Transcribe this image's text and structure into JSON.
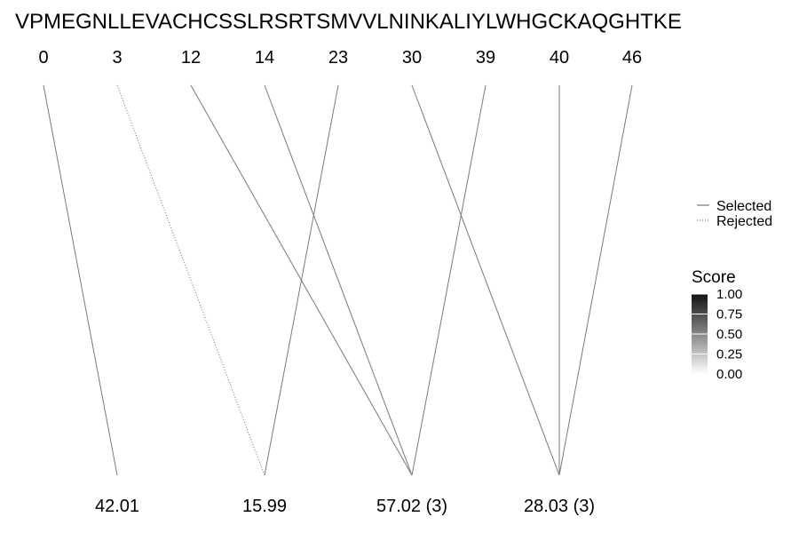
{
  "chart_data": {
    "type": "line",
    "sequence": "VPMEGNLLEVACHCSSLRSRTSMVVLNINKALIYLWHGCKAQGHTKE",
    "top_positions": [
      "0",
      "3",
      "12",
      "14",
      "23",
      "30",
      "39",
      "40",
      "46"
    ],
    "bottom_labels": [
      "42.01",
      "15.99",
      "57.02 (3)",
      "28.03 (3)"
    ],
    "connections": [
      {
        "top": 0,
        "bottom": 0,
        "status": "selected",
        "score": 0.6
      },
      {
        "top": 1,
        "bottom": 1,
        "status": "rejected",
        "score": 0.6
      },
      {
        "top": 2,
        "bottom": 2,
        "status": "selected",
        "score": 0.6
      },
      {
        "top": 3,
        "bottom": 2,
        "status": "selected",
        "score": 0.6
      },
      {
        "top": 4,
        "bottom": 1,
        "status": "selected",
        "score": 0.6
      },
      {
        "top": 5,
        "bottom": 3,
        "status": "selected",
        "score": 0.6
      },
      {
        "top": 6,
        "bottom": 2,
        "status": "selected",
        "score": 0.6
      },
      {
        "top": 7,
        "bottom": 3,
        "status": "selected",
        "score": 0.6
      },
      {
        "top": 8,
        "bottom": 3,
        "status": "selected",
        "score": 0.6
      }
    ],
    "legend": {
      "selected_label": "Selected",
      "rejected_label": "Rejected",
      "position": "right"
    },
    "score_scale": {
      "title": "Score",
      "ticks": [
        "1.00",
        "0.75",
        "0.50",
        "0.25",
        "0.00"
      ],
      "min": 0,
      "max": 1
    }
  }
}
